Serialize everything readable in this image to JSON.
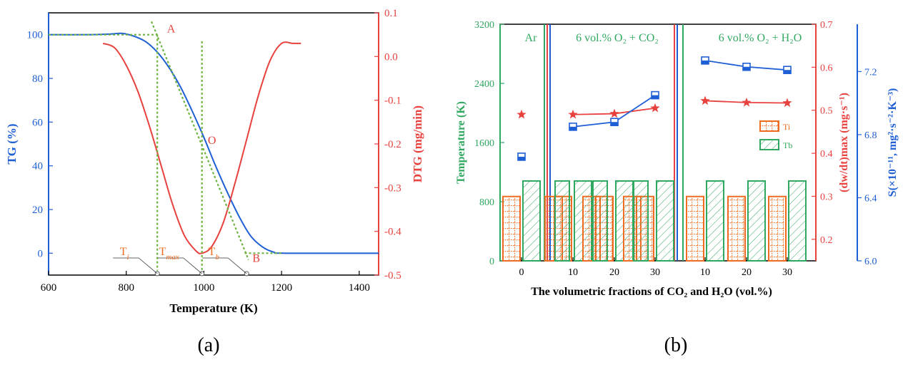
{
  "colors": {
    "blue": "#1f5fd6",
    "red": "#e8423f",
    "green": "#30a860",
    "dashgreen": "#6db33f",
    "orange": "#ef6c21",
    "black": "#000000"
  },
  "panel_labels": {
    "a": "(a)",
    "b": "(b)"
  },
  "chart_data": [
    {
      "id": "a",
      "type": "line",
      "xlabel": "Temperature (K)",
      "ylabel_left": "TG (%)",
      "ylabel_right": "DTG (mg/min)",
      "xlim": [
        600,
        1450
      ],
      "ylim_left": [
        -10,
        110
      ],
      "ylim_right": [
        -0.5,
        0.1
      ],
      "xticks": [
        600,
        800,
        1000,
        1200,
        1400
      ],
      "yticks_left": [
        0,
        20,
        40,
        60,
        80,
        100
      ],
      "yticks_right": [
        0.1,
        0.0,
        -0.1,
        -0.2,
        -0.3,
        -0.4,
        -0.5
      ],
      "series": [
        {
          "name": "TG",
          "axis": "left",
          "x": [
            600,
            700,
            760,
            790,
            820,
            850,
            880,
            910,
            940,
            970,
            1000,
            1030,
            1060,
            1090,
            1120,
            1150,
            1180,
            1210,
            1450
          ],
          "y": [
            100,
            100,
            100.3,
            100.6,
            99.3,
            96.8,
            92,
            85,
            76,
            65,
            53,
            40,
            28,
            17,
            8,
            3,
            0.5,
            0,
            0
          ]
        },
        {
          "name": "DTG",
          "axis": "right",
          "x": [
            740,
            770,
            800,
            830,
            860,
            890,
            920,
            950,
            980,
            995,
            1020,
            1050,
            1080,
            1110,
            1140,
            1170,
            1200,
            1230,
            1250
          ],
          "y": [
            0.03,
            0.02,
            -0.02,
            -0.08,
            -0.16,
            -0.25,
            -0.34,
            -0.41,
            -0.445,
            -0.45,
            -0.435,
            -0.38,
            -0.29,
            -0.19,
            -0.09,
            -0.01,
            0.03,
            0.03,
            0.03
          ]
        }
      ],
      "tangent_lines": [
        {
          "name": "initial-baseline",
          "x": [
            600,
            880
          ],
          "y": [
            100,
            100
          ]
        },
        {
          "name": "tangent-AB",
          "x": [
            865,
            1115
          ],
          "y": [
            106,
            -3
          ]
        },
        {
          "name": "final-baseline",
          "x": [
            1105,
            1200
          ],
          "y": [
            0,
            0
          ]
        },
        {
          "name": "vertical-Ti",
          "x": [
            880,
            880
          ],
          "y": [
            100,
            -8
          ]
        },
        {
          "name": "vertical-Tmax",
          "x": [
            995,
            995
          ],
          "y": [
            97,
            -8
          ]
        }
      ],
      "annotations": [
        {
          "text": "A",
          "x": 905,
          "y": 101
        },
        {
          "text": "O",
          "x": 1010,
          "y": 50
        },
        {
          "text": "B",
          "x": 1125,
          "y": -4
        }
      ],
      "temp_labels": [
        {
          "base": "T",
          "sub": "i",
          "x": 880
        },
        {
          "base": "T",
          "sub": "max",
          "x": 995
        },
        {
          "base": "T",
          "sub": "b",
          "x": 1110
        }
      ]
    },
    {
      "id": "b",
      "type": "bar",
      "xlabel": "The volumetric fractions of CO₂ and H₂O (vol.%)",
      "ylabel_left": "Temperature (K)",
      "ylabel_mid": "(dw/dt)max (mg·s⁻¹)",
      "ylabel_right": "S(×10⁻¹¹, mg²·s⁻²·K⁻³)",
      "ylim_left": [
        0,
        3200
      ],
      "ylim_mid": [
        0.15,
        0.7
      ],
      "ylim_right": [
        6.0,
        7.5
      ],
      "yticks_left": [
        0,
        800,
        1600,
        2400,
        3200
      ],
      "yticks_mid": [
        0.2,
        0.3,
        0.4,
        0.5,
        0.6,
        0.7
      ],
      "yticks_right": [
        6.0,
        6.4,
        6.8,
        7.2
      ],
      "sections": [
        {
          "title": "Ar",
          "categories": [
            "0"
          ]
        },
        {
          "title": "6 vol.% O₂ + CO₂",
          "categories": [
            "10",
            "20",
            "30"
          ]
        },
        {
          "title": "6 vol.% O₂ + H₂O",
          "categories": [
            "10",
            "20",
            "30"
          ]
        }
      ],
      "legend": [
        "Ti",
        "Tb"
      ],
      "series": [
        {
          "name": "Ti",
          "axis": "left",
          "values": [
            870,
            870,
            870,
            870,
            870,
            870,
            870
          ]
        },
        {
          "name": "Tb",
          "axis": "left",
          "values": [
            1080,
            1080,
            1080,
            1080,
            1080,
            1080,
            1080
          ]
        },
        {
          "name": "(dw/dt)max",
          "axis": "mid",
          "values": [
            0.49,
            0.49,
            0.492,
            0.505,
            0.522,
            0.518,
            0.517
          ]
        },
        {
          "name": "S",
          "axis": "right",
          "values": [
            6.66,
            6.85,
            6.88,
            7.05,
            7.27,
            7.23,
            7.21
          ]
        }
      ]
    }
  ]
}
